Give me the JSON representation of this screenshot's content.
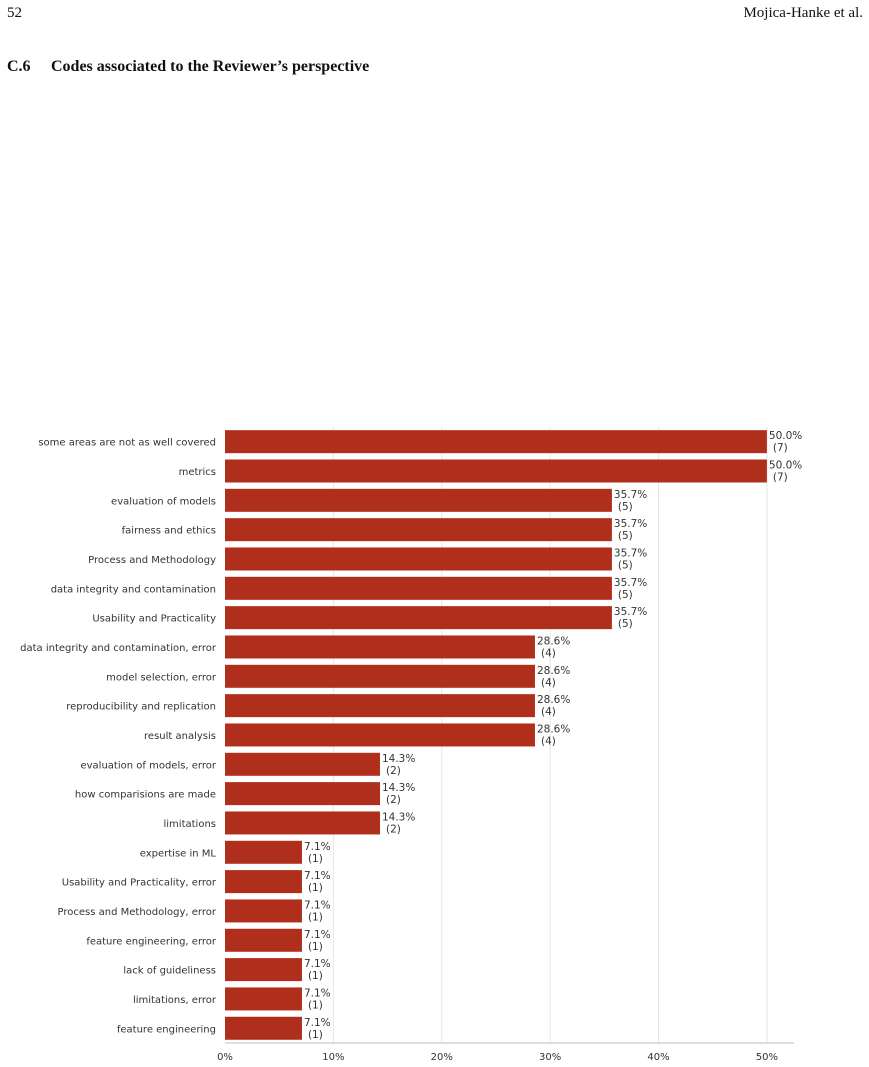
{
  "header": {
    "page_number": "52",
    "running_head": "Mojica-Hanke et al."
  },
  "section": {
    "number": "C.6",
    "title": "Codes associated to the Reviewer’s perspective"
  },
  "colors": {
    "bar": "#b02e1c",
    "grid": "#e6e6e6",
    "axis": "#bdbdbd",
    "text": "#333333"
  },
  "chart_data": {
    "type": "bar",
    "orientation": "horizontal",
    "title": "",
    "xlabel": "",
    "ylabel": "",
    "xlim": [
      0,
      0.525
    ],
    "grid": true,
    "ticks": [
      {
        "value": 0,
        "label": "0%"
      },
      {
        "value": 0.1,
        "label": "10%"
      },
      {
        "value": 0.2,
        "label": "20%"
      },
      {
        "value": 0.3,
        "label": "30%"
      },
      {
        "value": 0.4,
        "label": "40%"
      },
      {
        "value": 0.5,
        "label": "50%"
      }
    ],
    "categories": [
      "some areas are not as well covered",
      "metrics",
      "evaluation of models",
      "fairness and ethics",
      "Process and Methodology",
      "data integrity and contamination",
      "Usability and Practicality",
      "data integrity and contamination, error",
      "model selection, error",
      "reproducibility and replication",
      "result analysis",
      "evaluation of models, error",
      "how comparisions are made",
      "limitations",
      "expertise in ML",
      "Usability and Practicality, error",
      "Process and Methodology, error",
      "feature engineering, error",
      "lack of guideliness",
      "limitations, error",
      "feature engineering"
    ],
    "values": [
      0.5,
      0.5,
      0.357,
      0.357,
      0.357,
      0.357,
      0.357,
      0.286,
      0.286,
      0.286,
      0.286,
      0.143,
      0.143,
      0.143,
      0.071,
      0.071,
      0.071,
      0.071,
      0.071,
      0.071,
      0.071
    ],
    "value_labels": [
      "50.0%",
      "50.0%",
      "35.7%",
      "35.7%",
      "35.7%",
      "35.7%",
      "35.7%",
      "28.6%",
      "28.6%",
      "28.6%",
      "28.6%",
      "14.3%",
      "14.3%",
      "14.3%",
      "7.1%",
      "7.1%",
      "7.1%",
      "7.1%",
      "7.1%",
      "7.1%",
      "7.1%"
    ],
    "count_labels": [
      "(7)",
      "(7)",
      "(5)",
      "(5)",
      "(5)",
      "(5)",
      "(5)",
      "(4)",
      "(4)",
      "(4)",
      "(4)",
      "(2)",
      "(2)",
      "(2)",
      "(1)",
      "(1)",
      "(1)",
      "(1)",
      "(1)",
      "(1)",
      "(1)"
    ]
  }
}
